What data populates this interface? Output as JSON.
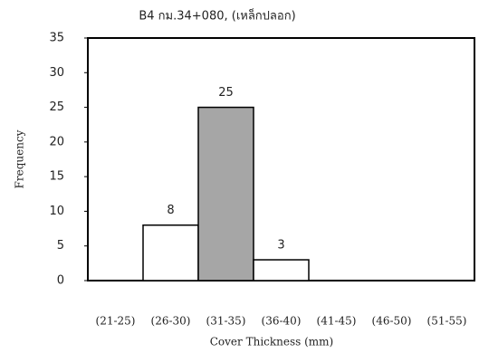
{
  "chart_data": {
    "type": "bar",
    "title": "B4 กม.34+080, (เหล็กปลอก)",
    "x_label": "Cover Thickness (mm)",
    "y_label": "Frequency",
    "categories": [
      "(21-25)",
      "(26-30)",
      "(31-35)",
      "(36-40)",
      "(41-45)",
      "(46-50)",
      "(51-55)"
    ],
    "values": [
      0,
      8,
      25,
      3,
      0,
      0,
      0
    ],
    "value_labels": [
      null,
      "8",
      "25",
      "3",
      null,
      null,
      null
    ],
    "colors": [
      "#ffffff",
      "#ffffff",
      "#a6a6a6",
      "#ffffff",
      "#ffffff",
      "#ffffff",
      "#ffffff"
    ],
    "ylim": [
      0,
      35
    ],
    "yticks": [
      0,
      5,
      10,
      15,
      20,
      25,
      30,
      35
    ],
    "grid": false
  }
}
